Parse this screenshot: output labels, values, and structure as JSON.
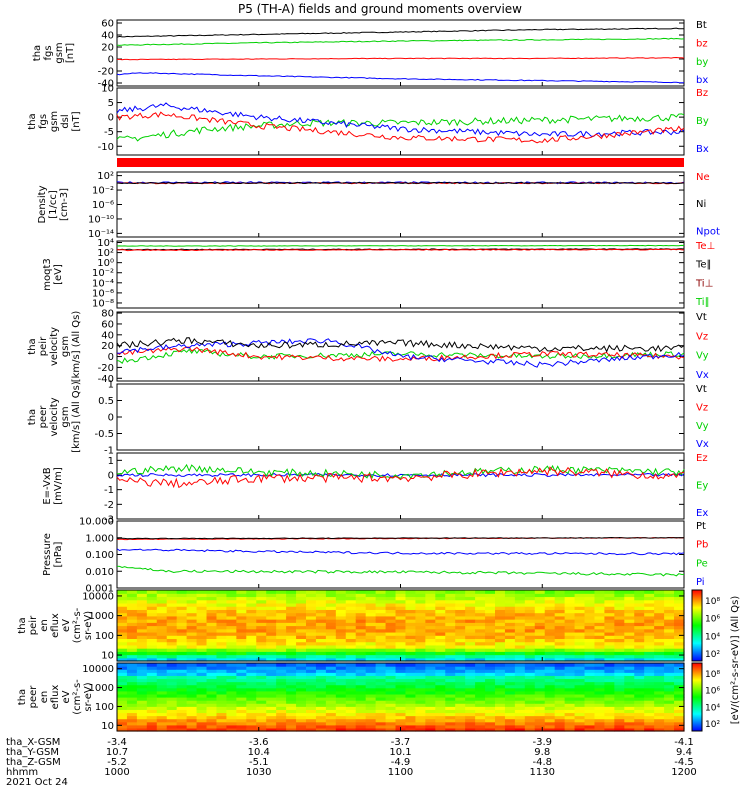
{
  "title": "P5 (TH-A) fields and ground moments overview",
  "colors": {
    "black": "#000000",
    "red": "#ff0000",
    "green": "#00d000",
    "blue": "#0000ff",
    "darkred": "#8b0000"
  },
  "chart_data": [
    {
      "type": "line",
      "ylabel": [
        "tha",
        "fgs",
        "gsm",
        "[nT]"
      ],
      "yticks": [
        -40,
        -20,
        0,
        20,
        40,
        60
      ],
      "ylim": [
        -45,
        65
      ],
      "legend": [
        {
          "label": "Bt",
          "color": "black"
        },
        {
          "label": "bz",
          "color": "red"
        },
        {
          "label": "by",
          "color": "green"
        },
        {
          "label": "bx",
          "color": "blue"
        }
      ],
      "series": [
        {
          "color": "black",
          "x": [
            1000,
            1030,
            1100,
            1130,
            1200
          ],
          "y": [
            37,
            41,
            45,
            49,
            51
          ],
          "noise": 0.7
        },
        {
          "color": "green",
          "x": [
            1000,
            1030,
            1100,
            1130,
            1200
          ],
          "y": [
            23,
            27,
            30,
            32,
            34
          ],
          "noise": 0.7
        },
        {
          "color": "red",
          "x": [
            1000,
            1030,
            1100,
            1130,
            1200
          ],
          "y": [
            -1,
            0,
            1,
            1,
            2
          ],
          "noise": 0.5
        },
        {
          "color": "blue",
          "x": [
            1000,
            1005,
            1030,
            1100,
            1130,
            1200
          ],
          "y": [
            -26,
            -23,
            -28,
            -33,
            -36,
            -39
          ],
          "noise": 0.7
        }
      ]
    },
    {
      "type": "line",
      "ylabel": [
        "tha",
        "fgs",
        "gsm",
        "dsl",
        "[nT]"
      ],
      "yticks": [
        -10,
        -5,
        0,
        5,
        10
      ],
      "ylim": [
        -13,
        10
      ],
      "legend": [
        {
          "label": "Bz",
          "color": "red"
        },
        {
          "label": "By",
          "color": "green"
        },
        {
          "label": "Bx",
          "color": "blue"
        }
      ],
      "series": [
        {
          "color": "green",
          "x": [
            1000,
            1010,
            1020,
            1040,
            1100,
            1130,
            1200
          ],
          "y": [
            -8,
            -6,
            -4,
            -2,
            -2,
            -1,
            0
          ],
          "noise": 1.2
        },
        {
          "color": "blue",
          "x": [
            1000,
            1010,
            1030,
            1100,
            1130,
            1200
          ],
          "y": [
            2,
            4,
            0,
            -4,
            -6,
            -5
          ],
          "noise": 1.0
        },
        {
          "color": "red",
          "x": [
            1000,
            1010,
            1030,
            1100,
            1130,
            1200
          ],
          "y": [
            0,
            1,
            -3,
            -7,
            -8,
            -4
          ],
          "noise": 1.0
        }
      ]
    },
    {
      "type": "line",
      "log": true,
      "ylabel": [
        "Density",
        "[1/cc]",
        "[cm-3]"
      ],
      "yticks": [
        100,
        0.01,
        1e-06,
        1e-10,
        1e-14
      ],
      "tick_labels": [
        "10²",
        "10⁻²",
        "10⁻⁶",
        "10⁻¹⁰",
        "10⁻¹⁴"
      ],
      "ylim_exp": [
        -15,
        3
      ],
      "legend": [
        {
          "label": "Ne",
          "color": "red"
        },
        {
          "label": "Ni",
          "color": "black"
        },
        {
          "label": "Npot",
          "color": "blue"
        }
      ],
      "series": [
        {
          "color": "blue",
          "x": [
            1000,
            1200
          ],
          "y": [
            1.2,
            1.0
          ],
          "noise": 0.25
        },
        {
          "color": "red",
          "x": [
            1000,
            1200
          ],
          "y": [
            0.8,
            0.8
          ],
          "noise": 0.15
        },
        {
          "color": "black",
          "x": [
            1000,
            1200
          ],
          "y": [
            0.9,
            0.9
          ],
          "noise": 0.15
        }
      ]
    },
    {
      "type": "line",
      "log": true,
      "ylabel": [
        "moqt3",
        "[eV]"
      ],
      "yticks": [
        10000,
        100,
        1,
        0.01,
        0.0001,
        1e-06,
        1e-08
      ],
      "tick_labels": [
        "10⁴",
        "10²",
        "10⁰",
        "10⁻²",
        "10⁻⁴",
        "10⁻⁶",
        "10⁻⁸"
      ],
      "ylim_exp": [
        -9,
        4.3
      ],
      "legend": [
        {
          "label": "Te⊥",
          "color": "red"
        },
        {
          "label": "Te∥",
          "color": "black"
        },
        {
          "label": "Ti⊥",
          "color": "darkred"
        },
        {
          "label": "Ti∥",
          "color": "green"
        }
      ],
      "series": [
        {
          "color": "green",
          "x": [
            1000,
            1200
          ],
          "y": [
            2000,
            2400
          ],
          "noise": 0.05
        },
        {
          "color": "black",
          "x": [
            1000,
            1200
          ],
          "y": [
            400,
            500
          ],
          "noise": 0.08
        },
        {
          "color": "red",
          "x": [
            1000,
            1200
          ],
          "y": [
            300,
            400
          ],
          "noise": 0.08
        }
      ]
    },
    {
      "type": "line",
      "ylabel": [
        "tha",
        "peir",
        "velocity",
        "gsm",
        "[km/s] (All Qs)"
      ],
      "yticks": [
        -40,
        -20,
        0,
        20,
        40,
        60,
        80
      ],
      "ylim": [
        -45,
        82
      ],
      "legend": [
        {
          "label": "Vt",
          "color": "black"
        },
        {
          "label": "Vz",
          "color": "red"
        },
        {
          "label": "Vy",
          "color": "green"
        },
        {
          "label": "Vx",
          "color": "blue"
        }
      ],
      "series": [
        {
          "color": "green",
          "x": [
            1000,
            1015,
            1030,
            1100,
            1130,
            1200
          ],
          "y": [
            -10,
            10,
            0,
            5,
            0,
            5
          ],
          "noise": 5
        },
        {
          "color": "red",
          "x": [
            1000,
            1015,
            1030,
            1100,
            1130,
            1200
          ],
          "y": [
            5,
            15,
            0,
            -5,
            5,
            0
          ],
          "noise": 5
        },
        {
          "color": "blue",
          "x": [
            1000,
            1015,
            1045,
            1100,
            1130,
            1200
          ],
          "y": [
            10,
            20,
            30,
            0,
            -15,
            5
          ],
          "noise": 5
        },
        {
          "color": "black",
          "x": [
            1000,
            1015,
            1030,
            1100,
            1130,
            1200
          ],
          "y": [
            20,
            30,
            20,
            25,
            15,
            15
          ],
          "noise": 6
        }
      ]
    },
    {
      "type": "line",
      "ylabel": [
        "tha",
        "peer",
        "velocity",
        "gsm",
        "[km/s] (All Qs)"
      ],
      "yticks": [
        -1.0,
        -0.5,
        0.0,
        0.5,
        1.0
      ],
      "ylim": [
        -1,
        1
      ],
      "legend": [
        {
          "label": "Vt",
          "color": "black"
        },
        {
          "label": "Vz",
          "color": "red"
        },
        {
          "label": "Vy",
          "color": "green"
        },
        {
          "label": "Vx",
          "color": "blue"
        }
      ],
      "series": []
    },
    {
      "type": "line",
      "ylabel": [
        "E=-VxB",
        "[mV/m]"
      ],
      "yticks": [
        -3,
        -2,
        -1,
        0,
        1
      ],
      "ylim": [
        -3,
        1.5
      ],
      "legend": [
        {
          "label": "Ez",
          "color": "red"
        },
        {
          "label": "Ey",
          "color": "green"
        },
        {
          "label": "Ex",
          "color": "blue"
        }
      ],
      "series": [
        {
          "color": "blue",
          "x": [
            1000,
            1200
          ],
          "y": [
            0,
            0
          ],
          "noise": 0.1
        },
        {
          "color": "green",
          "x": [
            1000,
            1015,
            1030,
            1100,
            1130,
            1200
          ],
          "y": [
            0.2,
            0.5,
            0.2,
            0,
            0.4,
            0.2
          ],
          "noise": 0.25
        },
        {
          "color": "red",
          "x": [
            1000,
            1015,
            1030,
            1100,
            1130,
            1200
          ],
          "y": [
            -0.4,
            -0.6,
            -0.2,
            -0.2,
            0.3,
            -0.1
          ],
          "noise": 0.3
        }
      ]
    },
    {
      "type": "line",
      "log": true,
      "ylabel": [
        "Pressure",
        "[nPa]"
      ],
      "yticks": [
        10,
        1,
        0.1,
        0.01,
        0.001
      ],
      "tick_labels": [
        "10.000",
        "1.000",
        "0.100",
        "0.010",
        "0.001"
      ],
      "ylim_exp": [
        -3,
        1
      ],
      "legend": [
        {
          "label": "Pt",
          "color": "black"
        },
        {
          "label": "Pb",
          "color": "red"
        },
        {
          "label": "Pe",
          "color": "green"
        },
        {
          "label": "Pi",
          "color": "blue"
        }
      ],
      "series": [
        {
          "color": "red",
          "x": [
            1000,
            1200
          ],
          "y": [
            0.8,
            1.0
          ],
          "noise": 0.02
        },
        {
          "color": "black",
          "x": [
            1000,
            1200
          ],
          "y": [
            0.9,
            1.0
          ],
          "noise": 0.02
        },
        {
          "color": "blue",
          "x": [
            1000,
            1030,
            1100,
            1200
          ],
          "y": [
            0.2,
            0.15,
            0.12,
            0.11
          ],
          "noise": 0.06
        },
        {
          "color": "green",
          "x": [
            1000,
            1010,
            1100,
            1200
          ],
          "y": [
            0.02,
            0.01,
            0.009,
            0.006
          ],
          "noise": 0.08
        }
      ]
    },
    {
      "type": "heatmap",
      "ylabel": [
        "tha",
        "peir",
        "en",
        "eflux",
        "eV",
        "(cm²-s-",
        "sr-eV)"
      ],
      "yticks": [
        10,
        100,
        1000,
        10000
      ],
      "tick_labels": [
        "10",
        "100",
        "1000",
        "10000"
      ],
      "ylim": [
        5,
        20000
      ],
      "colorbar_ticks": [
        "10⁸",
        "10⁶",
        "10⁴",
        "10²"
      ]
    },
    {
      "type": "heatmap",
      "ylabel": [
        "tha",
        "peer",
        "en",
        "eflux",
        "eV",
        "(cm²-s-",
        "sr-eV)"
      ],
      "yticks": [
        10,
        100,
        1000,
        10000
      ],
      "tick_labels": [
        "10",
        "100",
        "1000",
        "10000"
      ],
      "ylim": [
        5,
        20000
      ],
      "colorbar_ticks": [
        "10⁸",
        "10⁶",
        "10⁴",
        "10²"
      ]
    }
  ],
  "colorbar_label": "[eV/(cm²-s-sr-eV)] (All Qs)",
  "xaxis": {
    "row_labels": [
      "tha_X-GSM",
      "tha_Y-GSM",
      "tha_Z-GSM",
      "hhmm",
      "2021 Oct 24"
    ],
    "ticks": [
      {
        "x": 1000,
        "vals": [
          "-3.4",
          "10.7",
          "-5.2",
          "1000"
        ]
      },
      {
        "x": 1030,
        "vals": [
          "-3.6",
          "10.4",
          "-5.1",
          "1030"
        ]
      },
      {
        "x": 1100,
        "vals": [
          "-3.7",
          "10.1",
          "-4.9",
          "1100"
        ]
      },
      {
        "x": 1130,
        "vals": [
          "-3.9",
          "9.8",
          "-4.8",
          "1130"
        ]
      },
      {
        "x": 1200,
        "vals": [
          "-4.1",
          "9.4",
          "-4.5",
          "1200"
        ]
      }
    ]
  }
}
